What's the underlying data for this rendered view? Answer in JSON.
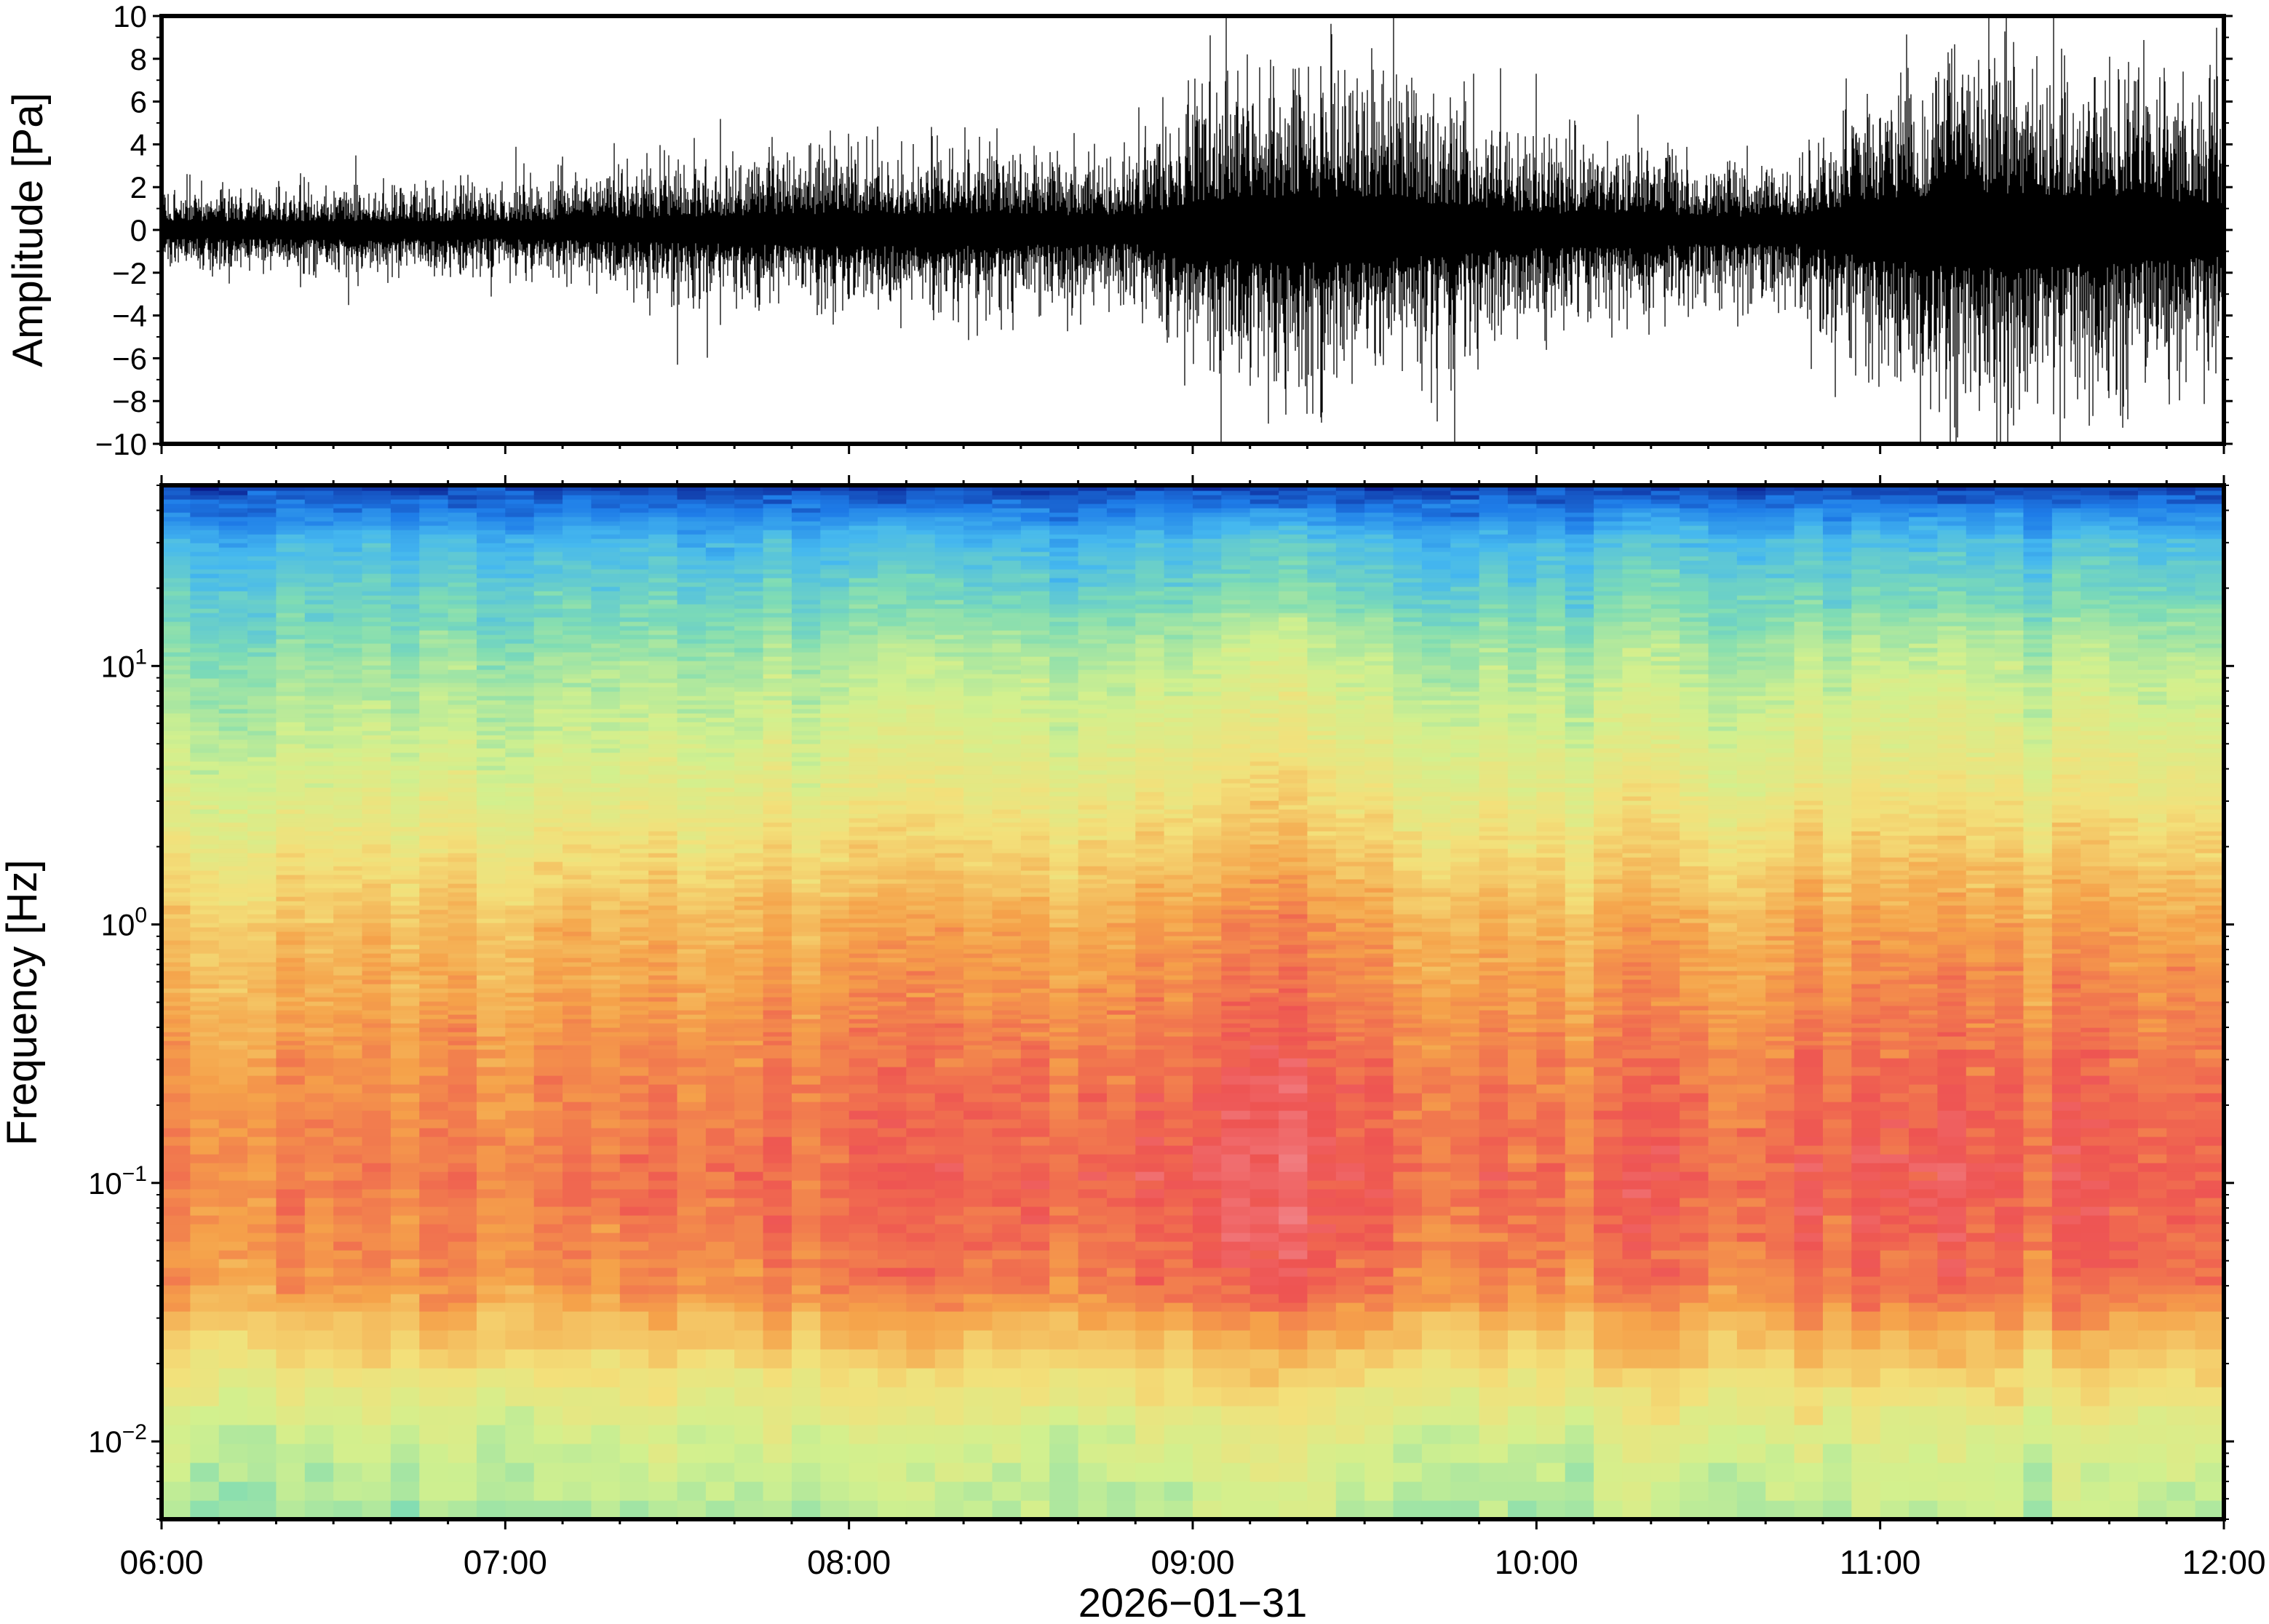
{
  "chart_data": [
    {
      "type": "line",
      "title": "",
      "ylabel": "Amplitude [Pa]",
      "ylim": [
        -10,
        10
      ],
      "yticks": [
        10,
        8,
        6,
        4,
        2,
        0,
        -2,
        -4,
        -6,
        -8,
        -10
      ],
      "ytick_labels": [
        "10",
        "8",
        "6",
        "4",
        "2",
        "0",
        "−2",
        "−4",
        "−6",
        "−8",
        "−10"
      ],
      "x_range": [
        "2026-01-31T06:00",
        "2026-01-31T12:00"
      ],
      "series": [
        {
          "style": "dense waveform",
          "color": "#000000",
          "envelope_times": [
            "06:00",
            "06:30",
            "07:00",
            "07:30",
            "08:00",
            "08:30",
            "08:50",
            "09:00",
            "09:15",
            "09:30",
            "09:45",
            "10:00",
            "10:15",
            "10:30",
            "10:45",
            "11:00",
            "11:15",
            "11:30",
            "11:45",
            "12:00"
          ],
          "envelope_amplitude": [
            1.5,
            1.6,
            1.6,
            2.4,
            3.0,
            2.8,
            2.6,
            5.0,
            6.0,
            5.5,
            4.5,
            3.0,
            3.2,
            2.5,
            2.5,
            5.5,
            7.0,
            6.5,
            5.5,
            5.0
          ],
          "peak_max": [
            {
              "time": "07:33",
              "value": 4.3
            },
            {
              "time": "09:03",
              "value": 9.1
            },
            {
              "time": "09:35",
              "value": 10
            },
            {
              "time": "10:00",
              "value": 7.3
            },
            {
              "time": "11:22",
              "value": 10
            },
            {
              "time": "11:40",
              "value": 8.1
            }
          ],
          "peak_min": [
            {
              "time": "07:30",
              "value": -6.3
            },
            {
              "time": "09:05",
              "value": -10
            },
            {
              "time": "09:20",
              "value": -8.6
            },
            {
              "time": "10:48",
              "value": -6.5
            },
            {
              "time": "11:07",
              "value": -10
            }
          ]
        }
      ]
    },
    {
      "type": "heatmap",
      "title": "",
      "ylabel": "Frequency [Hz]",
      "xlabel": "2026−01−31",
      "x_range": [
        "2026-01-31T06:00",
        "2026-01-31T12:00"
      ],
      "xtick_labels": [
        "06:00",
        "07:00",
        "08:00",
        "09:00",
        "10:00",
        "11:00",
        "12:00"
      ],
      "yscale": "log",
      "ylim": [
        0.005,
        50
      ],
      "yticks": [
        {
          "base": "10",
          "exp": "1",
          "value": 10
        },
        {
          "base": "10",
          "exp": "0",
          "value": 1
        },
        {
          "base": "10",
          "exp": "−1",
          "value": 0.1
        },
        {
          "base": "10",
          "exp": "−2",
          "value": 0.01
        }
      ],
      "colormap": [
        "#0a1a8a",
        "#1e7ce8",
        "#45b8ef",
        "#7fdcb4",
        "#d2f08e",
        "#f3e07a",
        "#f5a24a",
        "#ee5452",
        "#f4a0a8"
      ],
      "time_bins": 72,
      "profile_freqs_hz": [
        0.005,
        0.01,
        0.02,
        0.04,
        0.1,
        0.3,
        1,
        3,
        10,
        30,
        50
      ],
      "activity_times": [
        "06:00",
        "07:00",
        "07:30",
        "08:00",
        "09:00",
        "09:30",
        "10:00",
        "10:35",
        "10:45",
        "11:00",
        "11:30",
        "12:00"
      ],
      "activity_level": [
        0.15,
        0.18,
        0.45,
        0.55,
        0.85,
        0.8,
        0.55,
        0.25,
        0.6,
        0.75,
        0.7,
        0.6
      ]
    }
  ]
}
